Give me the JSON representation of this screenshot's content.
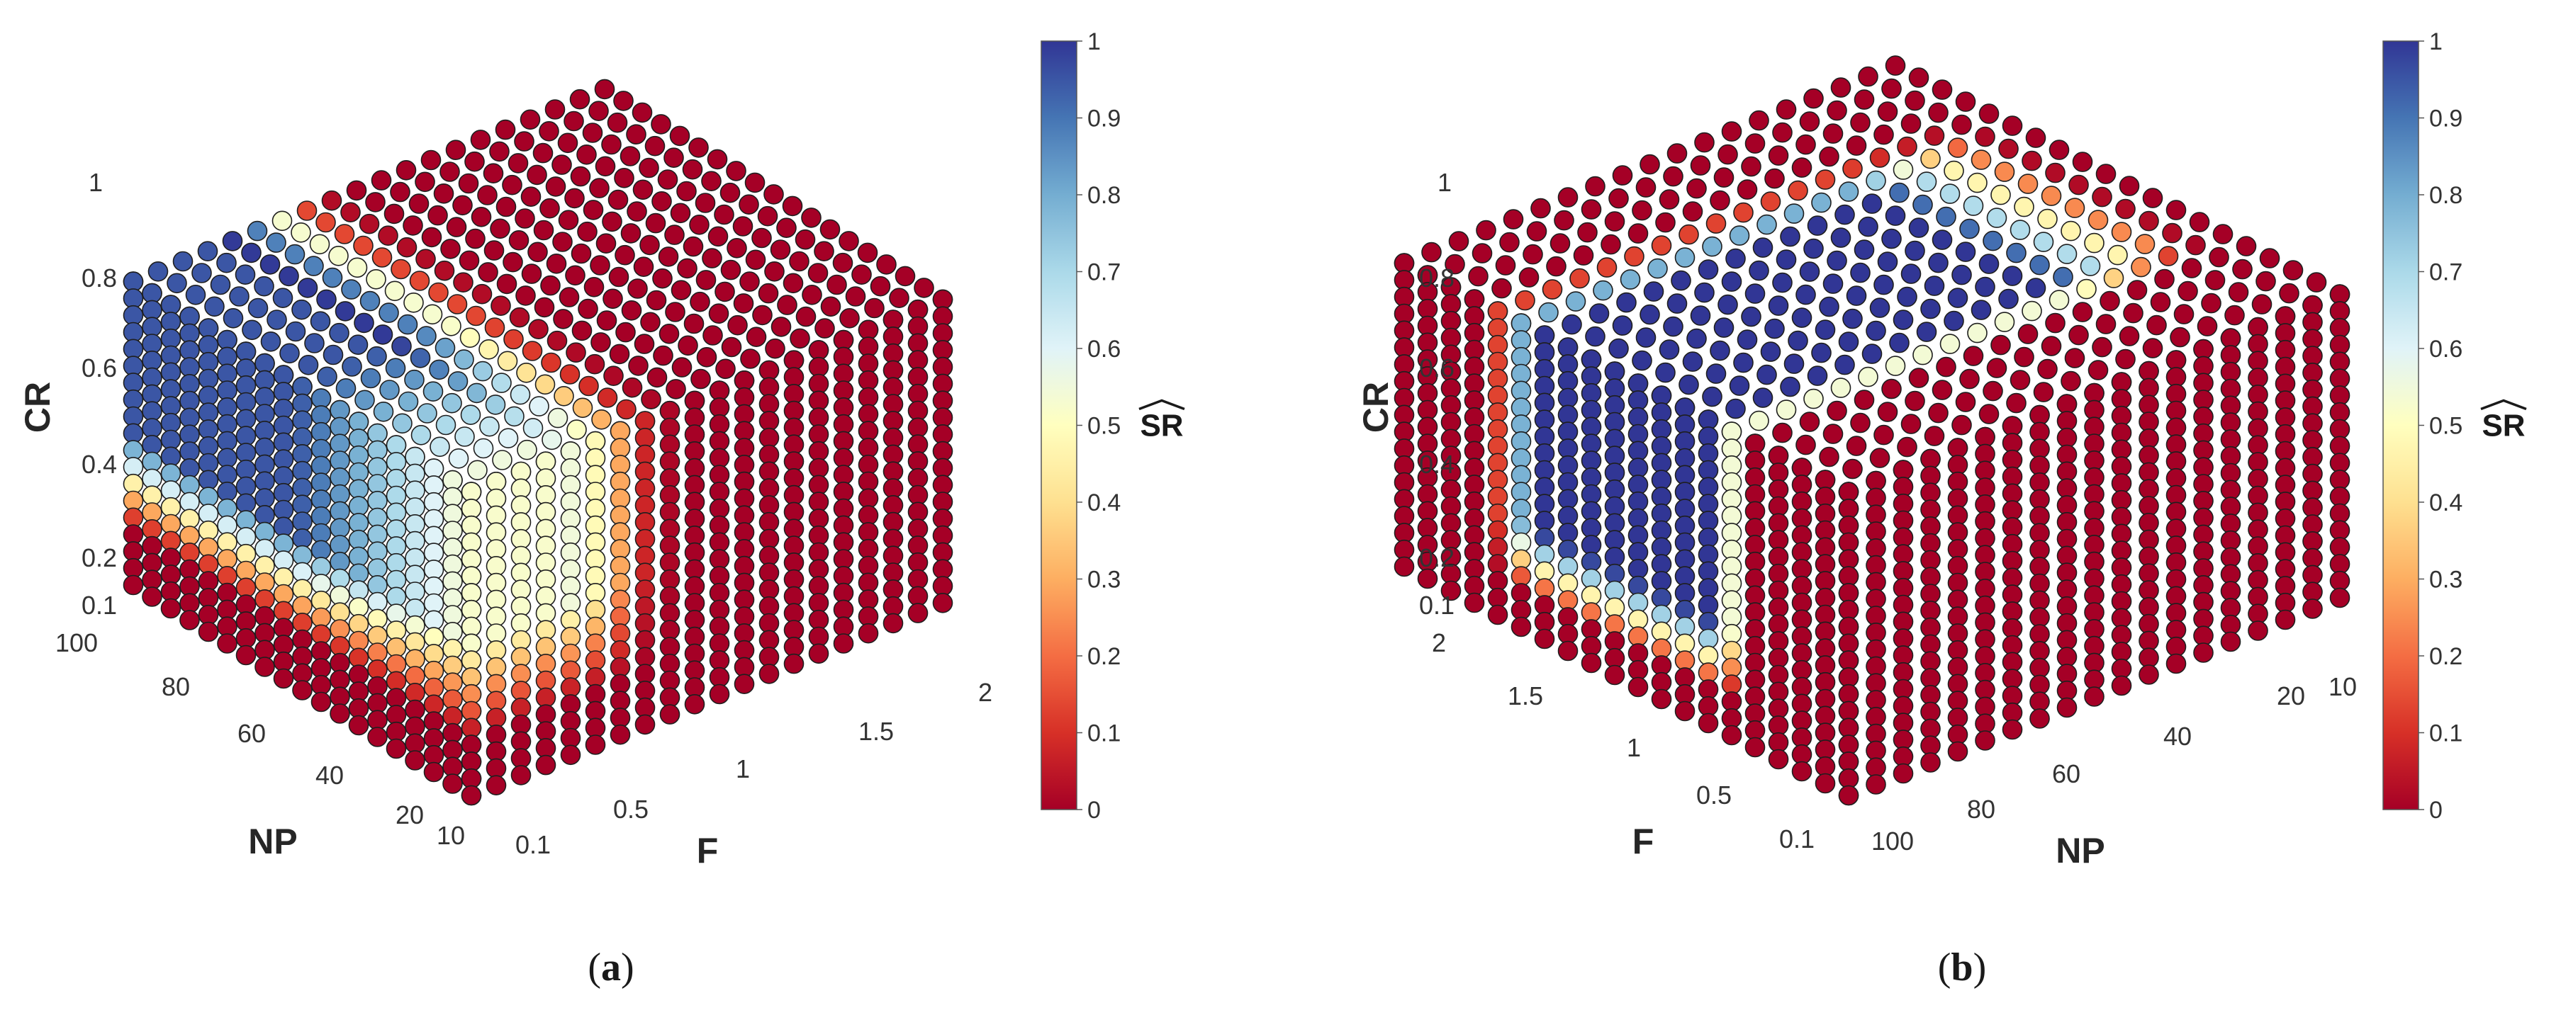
{
  "chart_data": [
    {
      "type": "scatter",
      "panel": "a",
      "axes": {
        "CR": {
          "label": "CR",
          "ticks": [
            "0.1",
            "0.2",
            "0.4",
            "0.6",
            "0.8",
            "1"
          ],
          "values": [
            0.1,
            0.2,
            0.4,
            0.6,
            0.8,
            1
          ],
          "range": [
            0.1,
            1
          ]
        },
        "NP": {
          "label": "NP",
          "ticks": [
            "10",
            "20",
            "40",
            "60",
            "80",
            "100"
          ],
          "values": [
            10,
            20,
            40,
            60,
            80,
            100
          ],
          "range": [
            10,
            100
          ]
        },
        "F": {
          "label": "F",
          "ticks": [
            "0.1",
            "0.5",
            "1",
            "1.5",
            "2"
          ],
          "values": [
            0.1,
            0.5,
            1,
            1.5,
            2
          ],
          "range": [
            0.1,
            2
          ]
        }
      },
      "grid_points": {
        "F": 20,
        "CR": 19,
        "NP": 19
      },
      "visible_faces": [
        "F = 0.1",
        "CR = 1",
        "NP = 100"
      ],
      "colorbar": {
        "label": "SR",
        "label_hat": true,
        "ticks": [
          "0",
          "0.1",
          "0.2",
          "0.3",
          "0.4",
          "0.5",
          "0.6",
          "0.7",
          "0.8",
          "0.9",
          "1"
        ],
        "range": [
          0,
          1
        ],
        "colormap": "red-yellow-blue"
      }
    },
    {
      "type": "scatter",
      "panel": "b",
      "axes": {
        "CR": {
          "label": "CR",
          "ticks": [
            "0.1",
            "0.2",
            "0.4",
            "0.6",
            "0.8",
            "1"
          ],
          "values": [
            0.1,
            0.2,
            0.4,
            0.6,
            0.8,
            1
          ],
          "range": [
            0.1,
            1
          ]
        },
        "NP": {
          "label": "NP",
          "ticks": [
            "10",
            "20",
            "40",
            "60",
            "80",
            "100"
          ],
          "values": [
            10,
            20,
            40,
            60,
            80,
            100
          ],
          "range": [
            10,
            100
          ]
        },
        "F": {
          "label": "F",
          "ticks": [
            "0.1",
            "0.5",
            "1",
            "1.5",
            "2"
          ],
          "values": [
            0.1,
            0.5,
            1,
            1.5,
            2
          ],
          "range": [
            0.1,
            2
          ]
        }
      },
      "grid_points": {
        "F": 20,
        "CR": 19,
        "NP": 19
      },
      "visible_faces": [
        "F = 2",
        "CR = 1",
        "NP = 10"
      ],
      "colorbar": {
        "label": "SR",
        "label_hat": true,
        "ticks": [
          "0",
          "0.1",
          "0.2",
          "0.3",
          "0.4",
          "0.5",
          "0.6",
          "0.7",
          "0.8",
          "0.9",
          "1"
        ],
        "range": [
          0,
          1
        ],
        "colormap": "red-yellow-blue"
      }
    }
  ],
  "captions": {
    "a": "a",
    "b": "b"
  },
  "colormap_stops": [
    "#a50026",
    "#d73027",
    "#f46d43",
    "#fdae61",
    "#fee090",
    "#ffffbf",
    "#e0f3f8",
    "#abd9e9",
    "#74add1",
    "#4575b4",
    "#313695"
  ]
}
